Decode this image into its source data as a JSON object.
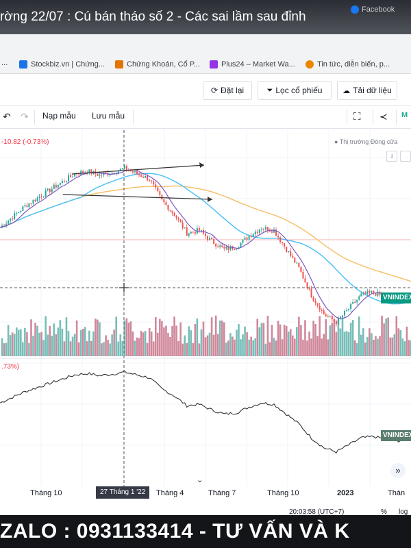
{
  "video": {
    "title": "rờng 22/07 : Cú bán tháo số 2 - Các sai lầm sau đỉnh",
    "ghost_tabs": [
      "Facebook"
    ]
  },
  "bookmarks": [
    {
      "label": "Stockbiz.vn | Chứng...",
      "color": "#1a73e8"
    },
    {
      "label": "Chứng Khoán, Cổ P...",
      "color": "#e37400"
    },
    {
      "label": "Plus24 – Market Wa...",
      "color": "#9334e6"
    },
    {
      "label": "Tin tức, diễn biến, p...",
      "color": "#ea8600"
    }
  ],
  "header": {
    "reset_label": "Đặt lại",
    "filter_label": "Lọc cổ phiếu",
    "load_label": "Tải dữ liệu"
  },
  "toolbar": {
    "load_template": "Nạp mẫu",
    "save_template": "Lưu mẫu"
  },
  "chart": {
    "price_change": "-10.82 (-0.73%)",
    "market_status": "Thị trường Đóng cửa",
    "lower_change": ".73%)",
    "symbol_badge": "VNINDEX",
    "crosshair_date": "27 Tháng 1 '22",
    "clock": "20:03:58 (UTC+7)",
    "percent_label": "%",
    "log_label": "log",
    "colors": {
      "up": "#26a69a",
      "down": "#ef5350",
      "ma_fast": "#7e57c2",
      "ma_mid": "#4fc3f7",
      "ma_slow": "#f5c26b"
    }
  },
  "chart_data": {
    "type": "line",
    "x_tick_labels": [
      "Tháng 10",
      "Tháng 4",
      "Tháng 7",
      "Tháng 10",
      "2023",
      "Thán"
    ],
    "series": [
      {
        "values": [
          1300,
          1340,
          1380,
          1410,
          1440,
          1470,
          1500,
          1510,
          1495,
          1505,
          1520,
          1500,
          1480,
          1400,
          1350,
          1280,
          1290,
          1250,
          1220,
          1230,
          1270,
          1300,
          1290,
          1220,
          1150,
          1050,
          980,
          950,
          1000,
          1050,
          1060,
          1040,
          1030,
          1050
        ]
      }
    ]
  },
  "banner": {
    "text": "ZALO : 0931133414 - TƯ VẤN VÀ K"
  }
}
